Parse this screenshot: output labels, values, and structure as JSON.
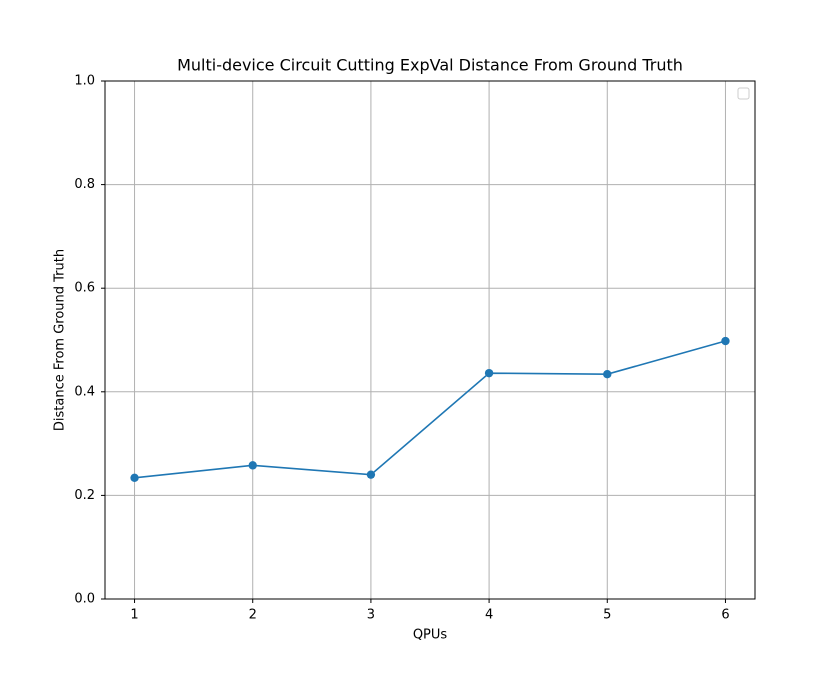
{
  "chart_data": {
    "type": "line",
    "title": "Multi-device Circuit Cutting ExpVal Distance From Ground Truth",
    "x_label": "QPUs",
    "y_label": "Distance From Ground Truth",
    "x": [
      1,
      2,
      3,
      4,
      5,
      6
    ],
    "series": [
      {
        "color": "#1f77b4",
        "values": [
          0.234,
          0.258,
          0.24,
          0.436,
          0.434,
          0.498
        ]
      }
    ],
    "xlim": [
      0.75,
      6.25
    ],
    "xticks": [
      1,
      2,
      3,
      4,
      5,
      6
    ],
    "ylim": [
      0,
      1
    ],
    "yticks": [
      {
        "value": 0,
        "label": "0.0"
      },
      0.2,
      0.4,
      0.6,
      0.8,
      {
        "value": 1,
        "label": "1.0"
      }
    ],
    "grid": true
  }
}
